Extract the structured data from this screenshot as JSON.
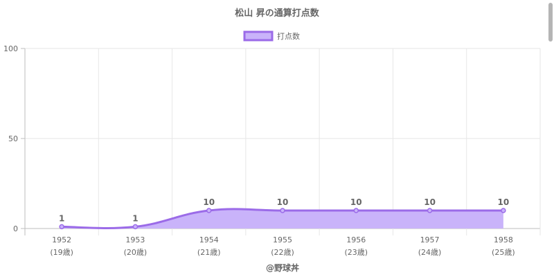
{
  "chart_data": {
    "type": "area",
    "title": "松山 昇の通算打点数",
    "x": [
      "1952",
      "1953",
      "1954",
      "1955",
      "1956",
      "1957",
      "1958"
    ],
    "x_sublabels": [
      "(19歳)",
      "(20歳)",
      "(21歳)",
      "(22歳)",
      "(23歳)",
      "(24歳)",
      "(25歳)"
    ],
    "series": [
      {
        "name": "打点数",
        "values": [
          1,
          1,
          10,
          10,
          10,
          10,
          10
        ]
      }
    ],
    "ylim": [
      0,
      100
    ],
    "yticks": [
      "0",
      "50",
      "100"
    ],
    "grid": true,
    "legend": "top-center",
    "credit": "@野球丼"
  },
  "colors": {
    "line": "#9b6be8",
    "fill": "#c9b3fa",
    "grid": "#e6e6e6",
    "axis": "#bdbdbd",
    "text": "#666666"
  }
}
